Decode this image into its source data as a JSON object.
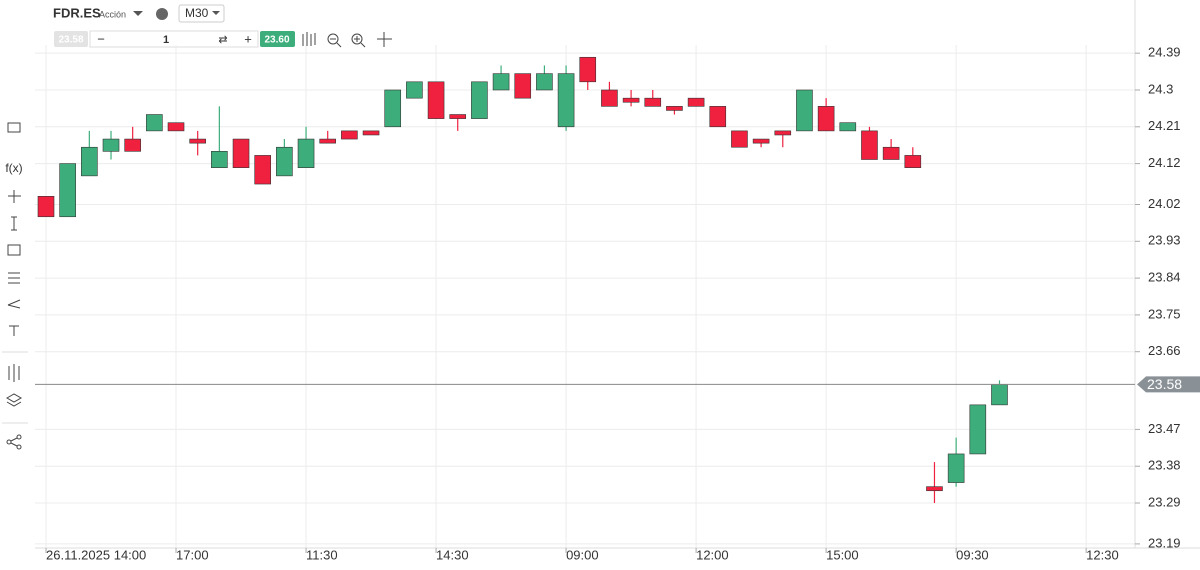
{
  "toolbar": {
    "symbol": "FDR.ES",
    "asset_type": "Acción",
    "timeframe": "M30",
    "sell_price": "23.58",
    "quantity": "1",
    "buy_price": "23.60",
    "minus": "−",
    "plus": "+",
    "fx": "f(x)"
  },
  "chart_data": {
    "type": "candlestick",
    "categories": [
      "26.11.2025 14:00",
      null,
      null,
      null,
      null,
      null,
      "17:00",
      null,
      null,
      null,
      null,
      null,
      "11:30",
      null,
      null,
      null,
      null,
      null,
      "14:30",
      null,
      null,
      null,
      null,
      null,
      "09:00",
      null,
      null,
      null,
      null,
      null,
      "12:00",
      null,
      null,
      null,
      null,
      null,
      "15:00",
      null,
      null,
      null,
      null,
      null,
      "09:30",
      null,
      null,
      null,
      null,
      null,
      "12:30"
    ],
    "open": [
      24.04,
      23.99,
      24.09,
      24.15,
      24.18,
      24.2,
      24.22,
      24.18,
      24.11,
      24.18,
      24.14,
      24.09,
      24.11,
      24.18,
      24.2,
      24.2,
      24.21,
      24.28,
      24.32,
      24.24,
      24.23,
      24.3,
      24.34,
      24.3,
      24.21,
      24.38,
      24.3,
      24.28,
      24.28,
      24.26,
      24.28,
      24.26,
      24.2,
      24.18,
      24.2,
      24.2,
      24.26,
      24.2,
      24.2,
      24.16,
      24.14,
      23.33,
      23.34,
      23.41,
      23.53,
      null,
      null,
      null,
      null
    ],
    "high": [
      24.04,
      24.12,
      24.2,
      24.2,
      24.21,
      24.24,
      24.22,
      24.2,
      24.26,
      24.18,
      24.14,
      24.18,
      24.21,
      24.2,
      24.2,
      24.2,
      24.3,
      24.32,
      24.32,
      24.24,
      24.32,
      24.36,
      24.34,
      24.36,
      24.36,
      24.38,
      24.32,
      24.3,
      24.3,
      24.26,
      24.28,
      24.26,
      24.2,
      24.18,
      24.2,
      24.3,
      24.28,
      24.22,
      24.21,
      24.18,
      24.16,
      23.39,
      23.45,
      23.53,
      23.59,
      null,
      null,
      null,
      null
    ],
    "low": [
      23.99,
      23.99,
      24.09,
      24.13,
      24.15,
      24.2,
      24.2,
      24.14,
      24.11,
      24.11,
      24.07,
      24.09,
      24.11,
      24.17,
      24.18,
      24.19,
      24.21,
      24.28,
      24.23,
      24.2,
      24.23,
      24.3,
      24.28,
      24.3,
      24.2,
      24.3,
      24.26,
      24.26,
      24.26,
      24.24,
      24.26,
      24.21,
      24.16,
      24.16,
      24.16,
      24.2,
      24.2,
      24.2,
      24.13,
      24.13,
      24.11,
      23.29,
      23.33,
      23.41,
      23.53,
      null,
      null,
      null,
      null
    ],
    "close": [
      23.99,
      24.12,
      24.16,
      24.18,
      24.15,
      24.24,
      24.2,
      24.17,
      24.15,
      24.11,
      24.07,
      24.16,
      24.18,
      24.17,
      24.18,
      24.19,
      24.3,
      24.32,
      24.23,
      24.23,
      24.32,
      24.34,
      24.28,
      24.34,
      24.34,
      24.32,
      24.26,
      24.27,
      24.26,
      24.25,
      24.26,
      24.21,
      24.16,
      24.17,
      24.19,
      24.3,
      24.2,
      24.22,
      24.13,
      24.13,
      24.11,
      23.32,
      23.41,
      23.53,
      23.58,
      null,
      null,
      null,
      null
    ],
    "up_color": "#3dae7b",
    "down_color": "#f0213f",
    "current_price": 23.58,
    "ylim": [
      23.18,
      24.41
    ],
    "yticks": [
      24.39,
      24.3,
      24.21,
      24.12,
      24.02,
      23.93,
      23.84,
      23.75,
      23.66,
      23.47,
      23.38,
      23.29,
      23.19
    ],
    "grid": true
  }
}
